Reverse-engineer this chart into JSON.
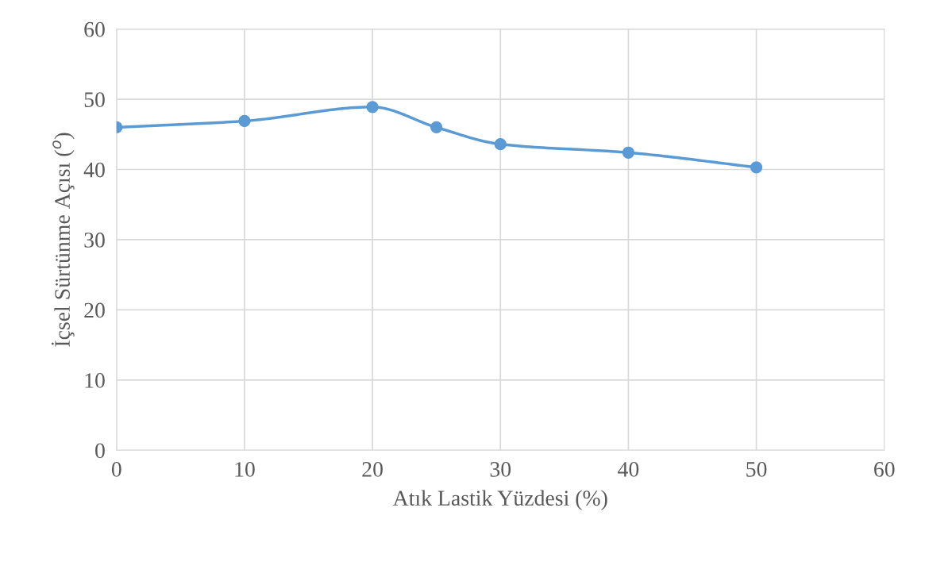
{
  "chart_data": {
    "type": "line",
    "xlabel": "Atık Lastik Yüzdesi (%)",
    "ylabel": "İçsel Sürtünme Açısı ($^{o}$)",
    "x": [
      0,
      10,
      20,
      25,
      30,
      40,
      50
    ],
    "series": [
      {
        "color": "#5b9bd5",
        "values": [
          46.0,
          46.9,
          48.9,
          46.0,
          43.6,
          42.4,
          40.3
        ]
      }
    ],
    "xlim": [
      0,
      60
    ],
    "xticks": [
      0,
      10,
      20,
      30,
      40,
      50,
      60
    ],
    "ylim": [
      0,
      60
    ],
    "yticks": [
      0,
      10,
      20,
      30,
      40,
      50,
      60
    ],
    "grid": true,
    "marker": "circle",
    "line_style": "solid"
  }
}
